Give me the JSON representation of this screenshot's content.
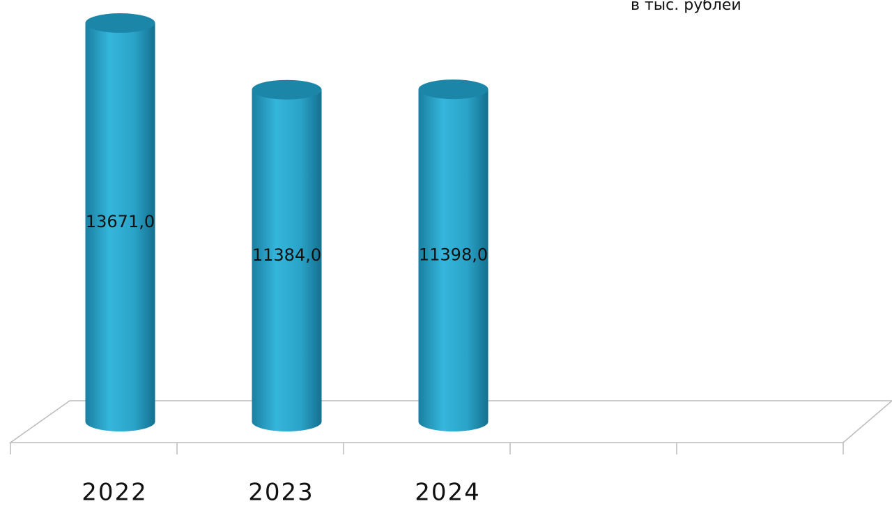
{
  "chart_data": {
    "type": "bar",
    "subtitle": "в тыс. рублей",
    "categories": [
      "2022",
      "2023",
      "2024",
      null,
      null
    ],
    "values": [
      13671,
      11384,
      11398,
      null,
      null
    ],
    "value_labels": [
      "13671,0",
      "11384,0",
      "11398,0",
      null,
      null
    ],
    "color": "#2aa3c8"
  }
}
